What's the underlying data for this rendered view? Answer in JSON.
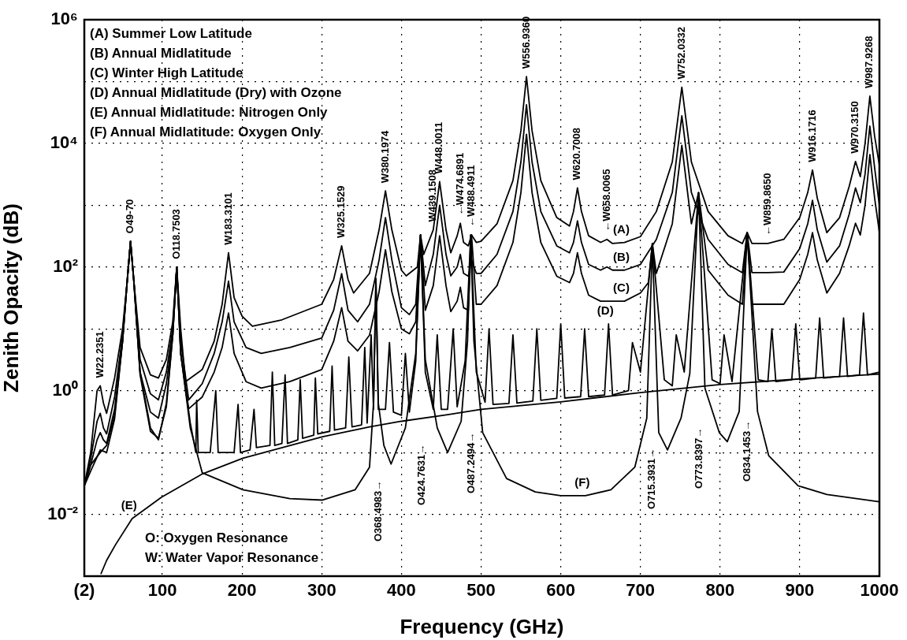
{
  "chart_data": {
    "type": "line",
    "xlabel": "Frequency (GHz)",
    "ylabel": "Zenith Opacity (dB)",
    "xlim": [
      2,
      1000
    ],
    "xticks": [
      {
        "value": 2,
        "label": "(2)"
      },
      100,
      200,
      300,
      400,
      500,
      600,
      700,
      800,
      900,
      1000
    ],
    "ylim": [
      0.001,
      1000000
    ],
    "yticks": [
      {
        "value": 0.001,
        "label": null
      },
      {
        "value": 0.01,
        "label": "10⁻²"
      },
      {
        "value": 0.1,
        "label": null
      },
      {
        "value": 1,
        "label": "10⁰"
      },
      {
        "value": 10,
        "label": null
      },
      {
        "value": 100,
        "label": "10²"
      },
      {
        "value": 1000,
        "label": null
      },
      {
        "value": 10000,
        "label": "10⁴"
      },
      {
        "value": 100000,
        "label": null
      },
      {
        "value": 1000000,
        "label": "10⁶"
      }
    ],
    "log": "y",
    "grid": true,
    "legend": false,
    "marker": "none",
    "line_style": "solid",
    "series": [
      {
        "color": "#000000",
        "x": [
          2,
          10,
          18,
          22,
          26,
          30,
          40,
          50,
          56,
          60,
          64,
          72,
          85,
          95,
          105,
          113,
          118,
          123,
          129,
          150,
          165,
          175,
          183,
          190,
          200,
          213,
          250,
          300,
          315,
          325,
          333,
          340,
          360,
          372,
          380,
          388,
          400,
          406,
          420,
          424,
          428,
          440,
          448,
          456,
          462,
          470,
          474,
          478,
          484,
          488,
          494,
          500,
          520,
          540,
          550,
          557,
          564,
          575,
          595,
          611,
          616,
          621,
          626,
          635,
          650,
          658,
          665,
          680,
          700,
          720,
          740,
          752,
          764,
          785,
          810,
          828,
          834,
          840,
          860,
          880,
          900,
          910,
          916,
          922,
          934,
          950,
          962,
          970,
          976,
          982,
          988,
          994,
          1000
        ],
        "values": [
          0.029,
          0.1,
          1,
          1.2,
          0.63,
          0.43,
          1.6,
          10,
          63,
          260,
          63,
          5,
          1.8,
          1.6,
          3.2,
          13,
          100,
          10,
          1.4,
          2.2,
          6.3,
          25,
          170,
          32,
          16,
          11,
          14,
          25,
          63,
          220,
          63,
          38,
          79,
          400,
          1700,
          400,
          89,
          72,
          100,
          330,
          160,
          400,
          2400,
          400,
          170,
          320,
          510,
          250,
          220,
          330,
          250,
          260,
          500,
          2500,
          16000,
          120000,
          16000,
          2500,
          630,
          460,
          790,
          1900,
          790,
          320,
          250,
          280,
          240,
          250,
          310,
          790,
          5000,
          81000,
          5000,
          790,
          320,
          240,
          360,
          240,
          240,
          280,
          630,
          1600,
          3700,
          1300,
          360,
          630,
          2000,
          5100,
          2900,
          10000,
          58000,
          13000,
          4400
        ]
      },
      {
        "color": "#000000",
        "x": [
          2,
          10,
          18,
          22,
          26,
          30,
          40,
          50,
          56,
          60,
          64,
          72,
          85,
          95,
          105,
          113,
          118,
          123,
          133,
          150,
          165,
          175,
          183,
          190,
          205,
          224,
          260,
          300,
          315,
          325,
          333,
          345,
          360,
          372,
          380,
          388,
          400,
          410,
          418,
          424,
          430,
          440,
          448,
          456,
          462,
          470,
          474,
          478,
          484,
          488,
          494,
          500,
          520,
          540,
          550,
          557,
          564,
          575,
          595,
          611,
          616,
          621,
          626,
          635,
          650,
          658,
          665,
          680,
          700,
          720,
          740,
          752,
          764,
          785,
          810,
          828,
          834,
          840,
          860,
          880,
          900,
          910,
          916,
          922,
          934,
          950,
          962,
          970,
          976,
          982,
          988,
          994,
          1000
        ],
        "values": [
          0.029,
          0.079,
          0.32,
          0.43,
          0.25,
          0.2,
          0.79,
          7.9,
          63,
          260,
          63,
          3.2,
          0.89,
          0.71,
          2,
          10,
          100,
          6.3,
          0.71,
          1.3,
          4,
          13,
          59,
          13,
          5,
          4,
          5,
          7.1,
          20,
          78,
          20,
          13,
          25,
          130,
          630,
          130,
          22,
          17,
          25,
          330,
          50,
          160,
          1000,
          160,
          72,
          100,
          160,
          79,
          71,
          130,
          79,
          79,
          160,
          790,
          5000,
          42000,
          5000,
          790,
          220,
          170,
          250,
          560,
          250,
          110,
          89,
          100,
          89,
          89,
          110,
          280,
          1600,
          28000,
          1600,
          280,
          110,
          81,
          360,
          81,
          81,
          83,
          200,
          500,
          1200,
          400,
          120,
          220,
          710,
          1900,
          1100,
          3200,
          19000,
          4000,
          980
        ]
      },
      {
        "color": "#000000",
        "x": [
          2,
          10,
          18,
          22,
          26,
          30,
          40,
          50,
          56,
          60,
          64,
          72,
          85,
          95,
          105,
          113,
          118,
          123,
          133,
          150,
          165,
          175,
          183,
          190,
          205,
          224,
          260,
          300,
          315,
          325,
          333,
          345,
          360,
          372,
          380,
          388,
          400,
          410,
          418,
          424,
          430,
          440,
          448,
          456,
          462,
          470,
          474,
          478,
          484,
          488,
          494,
          500,
          520,
          540,
          550,
          557,
          564,
          575,
          595,
          611,
          616,
          621,
          626,
          635,
          650,
          680,
          700,
          710,
          715,
          720,
          740,
          752,
          764,
          773,
          785,
          810,
          828,
          834,
          840,
          860,
          880,
          900,
          910,
          916,
          922,
          934,
          950,
          962,
          970,
          976,
          982,
          988,
          994,
          1000
        ],
        "values": [
          0.029,
          0.063,
          0.16,
          0.21,
          0.16,
          0.14,
          0.5,
          6.3,
          63,
          260,
          63,
          2,
          0.45,
          0.36,
          1.3,
          7.9,
          100,
          4,
          0.51,
          0.79,
          2,
          5,
          18,
          4,
          1.4,
          1.1,
          1.4,
          2.2,
          6.3,
          22,
          6.3,
          4.4,
          7.9,
          40,
          190,
          40,
          10,
          8.3,
          13,
          330,
          20,
          50,
          320,
          50,
          19,
          28,
          47,
          22,
          20,
          330,
          25,
          25,
          50,
          250,
          1600,
          14000,
          1600,
          250,
          71,
          56,
          79,
          170,
          79,
          35,
          28,
          28,
          38,
          56,
          240,
          79,
          500,
          9300,
          500,
          1600,
          89,
          35,
          25,
          360,
          25,
          25,
          25,
          63,
          160,
          360,
          130,
          38,
          79,
          220,
          510,
          330,
          1000,
          6600,
          1300,
          360
        ]
      },
      {
        "color": "#000000",
        "x": [
          2,
          10,
          22,
          30,
          40,
          50,
          56,
          60,
          64,
          72,
          85,
          95,
          105,
          113,
          118,
          123,
          135,
          142,
          143,
          145,
          160,
          167,
          170,
          190,
          195,
          198,
          210,
          215,
          218,
          235,
          238,
          241,
          250,
          254,
          257,
          270,
          273,
          276,
          290,
          292,
          295,
          310,
          313,
          316,
          330,
          334,
          338,
          350,
          354,
          357,
          362,
          365,
          368,
          371,
          380,
          385,
          390,
          400,
          405,
          410,
          418,
          424,
          430,
          440,
          445,
          450,
          458,
          465,
          470,
          480,
          487,
          494,
          505,
          510,
          515,
          535,
          540,
          545,
          565,
          570,
          575,
          595,
          600,
          605,
          625,
          630,
          635,
          655,
          660,
          665,
          685,
          690,
          700,
          715,
          730,
          740,
          745,
          755,
          773,
          790,
          800,
          805,
          815,
          834,
          848,
          860,
          865,
          870,
          890,
          895,
          900,
          920,
          925,
          930,
          950,
          955,
          960,
          975,
          980,
          985,
          1000
        ],
        "values": [
          0.029,
          0.05,
          0.11,
          0.1,
          0.35,
          6.3,
          63,
          260,
          63,
          1.8,
          0.22,
          0.17,
          0.55,
          7.9,
          100,
          4,
          0.3,
          0.1,
          0.7,
          0.1,
          0.1,
          1,
          0.1,
          0.1,
          0.6,
          0.1,
          0.11,
          0.5,
          0.12,
          0.13,
          2,
          0.13,
          0.14,
          1.8,
          0.14,
          0.16,
          1.5,
          0.17,
          0.19,
          1.6,
          0.2,
          0.22,
          2.5,
          0.23,
          0.25,
          3.5,
          0.26,
          0.28,
          5,
          0.3,
          8,
          0.5,
          65,
          0.5,
          0.5,
          6,
          0.45,
          0.4,
          4,
          0.45,
          3,
          330,
          2,
          0.5,
          8,
          0.5,
          0.5,
          10,
          0.55,
          3,
          330,
          2,
          0.65,
          10,
          0.6,
          0.62,
          8,
          0.63,
          0.68,
          10,
          0.7,
          0.75,
          12,
          0.76,
          0.8,
          10,
          0.8,
          0.85,
          12,
          0.85,
          1,
          6,
          2,
          240,
          1.5,
          1.2,
          8,
          2,
          1600,
          1.5,
          1.3,
          8,
          1.4,
          360,
          1.5,
          1.4,
          10,
          1.4,
          1.5,
          12,
          1.5,
          1.6,
          15,
          1.6,
          1.7,
          15,
          1.7,
          1.8,
          18,
          1.8,
          2
        ]
      },
      {
        "color": "#000000",
        "x": [
          23,
          30,
          41,
          62,
          99,
          150,
          201,
          301,
          360,
          400,
          458,
          500,
          600,
          700,
          800,
          900,
          1000
        ],
        "values": [
          0.0011,
          0.0018,
          0.0032,
          0.0085,
          0.019,
          0.045,
          0.081,
          0.18,
          0.26,
          0.32,
          0.41,
          0.5,
          0.66,
          0.93,
          1.26,
          1.55,
          1.86
        ]
      },
      {
        "color": "#000000",
        "x": [
          2,
          10,
          22,
          30,
          40,
          50,
          56,
          60,
          64,
          72,
          85,
          95,
          105,
          113,
          118,
          123,
          135,
          150,
          201,
          260,
          301,
          342,
          360,
          365,
          368,
          371,
          378,
          387,
          405,
          418,
          424,
          430,
          445,
          458,
          475,
          483,
          487,
          491,
          502,
          532,
          568,
          600,
          631,
          663,
          693,
          708,
          715,
          723,
          734,
          751,
          762,
          773,
          781,
          799,
          809,
          824,
          834,
          847,
          861,
          898,
          934,
          1000
        ],
        "values": [
          0.029,
          0.063,
          0.1,
          0.13,
          0.4,
          6.3,
          63,
          260,
          63,
          2,
          0.25,
          0.16,
          0.63,
          7.9,
          100,
          4,
          0.25,
          0.047,
          0.025,
          0.018,
          0.017,
          0.025,
          0.058,
          0.63,
          65,
          0.63,
          0.13,
          0.065,
          0.25,
          4,
          330,
          3.2,
          0.25,
          0.1,
          0.32,
          6.3,
          330,
          6.3,
          0.21,
          0.038,
          0.023,
          0.02,
          0.02,
          0.025,
          0.058,
          0.36,
          240,
          0.21,
          0.11,
          0.36,
          1.9,
          1600,
          1.1,
          0.21,
          0.15,
          0.46,
          360,
          0.46,
          0.089,
          0.029,
          0.021,
          0.016
        ]
      }
    ],
    "annotations": [
      "(A) Summer Low Latitude",
      "(B) Annual Midlatitude",
      "(C) Winter High Latitude",
      "(D) Annual Midlatitude (Dry) with Ozone",
      "(E) Annual Midlatitude: Nitrogen Only",
      "(F) Annual Midlatitude: Oxygen Only",
      "O: Oxygen Resonance",
      "W: Water Vapor Resonance",
      "O368.4983→",
      "O424.7631→",
      "O487.2494→",
      "O715.3931→",
      "O773.8397→",
      "O834.1453→",
      {
        "text": "W22.2351",
        "x": 22,
        "y": 1.2
      },
      {
        "text": "O49-70",
        "x": 60,
        "y": 260
      },
      {
        "text": "O118.7503",
        "x": 118,
        "y": 100
      },
      {
        "text": "W183.3101",
        "x": 183,
        "y": 170
      },
      {
        "text": "W325.1529",
        "x": 325,
        "y": 220
      },
      {
        "text": "W380.1974",
        "x": 380,
        "y": 1700
      },
      {
        "text": "W439.1508",
        "x": 440,
        "y": 400
      },
      {
        "text": "W448.0011",
        "x": 448,
        "y": 2400
      },
      {
        "text": "←W474.6891",
        "x": 474,
        "y": 510
      },
      {
        "text": "←W488.4911",
        "x": 488,
        "y": 330
      },
      {
        "text": "W556.9360",
        "x": 557,
        "y": 120000
      },
      {
        "text": "W620.7008",
        "x": 621,
        "y": 1900
      },
      {
        "text": "←W658.0065",
        "x": 658,
        "y": 280
      },
      {
        "text": "W752.0332",
        "x": 752,
        "y": 81000
      },
      {
        "text": "←W859.8650",
        "x": 860,
        "y": 240
      },
      {
        "text": "W916.1716",
        "x": 916,
        "y": 3700
      },
      {
        "text": "W970.3150",
        "x": 970,
        "y": 5100
      },
      {
        "text": "W987.9268",
        "x": 988,
        "y": 58000
      },
      {
        "text": "(A)",
        "x": 680,
        "y": 250
      },
      {
        "text": "(B)",
        "x": 680,
        "y": 89
      },
      {
        "text": "(C)",
        "x": 680,
        "y": 28
      },
      {
        "text": "(D)",
        "x": 660,
        "y": 12
      },
      {
        "text": "(E)",
        "x": 62,
        "y": 0.0085
      },
      {
        "text": "(F)",
        "x": 631,
        "y": 0.02
      }
    ]
  }
}
